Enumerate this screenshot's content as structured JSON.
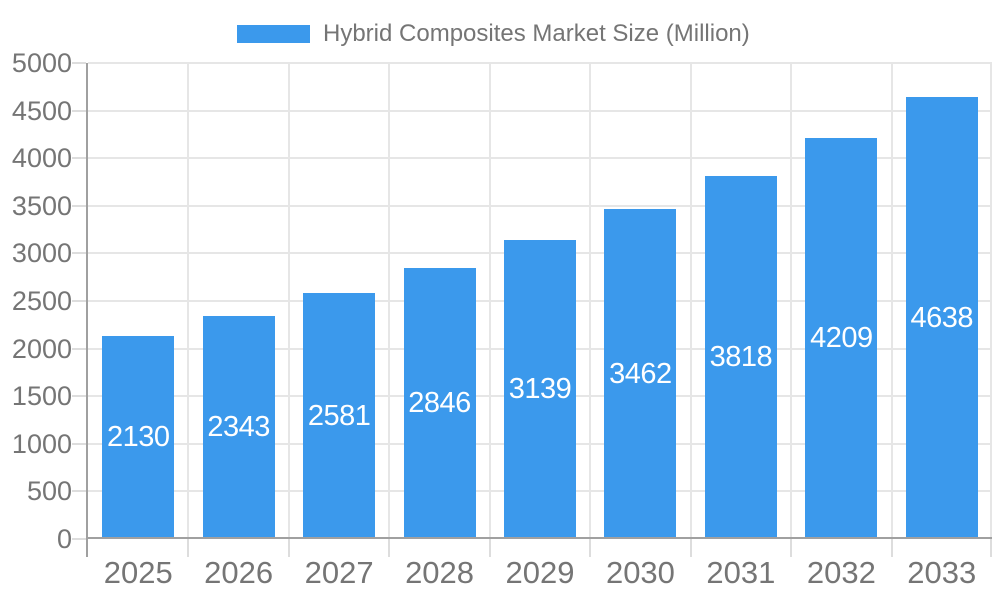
{
  "legend": {
    "label": "Hybrid Composites Market Size (Million)"
  },
  "chart_data": {
    "type": "bar",
    "title": "Hybrid Composites Market Size (Million)",
    "categories": [
      "2025",
      "2026",
      "2027",
      "2028",
      "2029",
      "2030",
      "2031",
      "2032",
      "2033"
    ],
    "series": [
      {
        "name": "Hybrid Composites Market Size (Million)",
        "values": [
          2130,
          2343,
          2581,
          2846,
          3139,
          3462,
          3818,
          4209,
          4638
        ]
      }
    ],
    "value_labels": [
      2130,
      2343,
      2581,
      2846,
      3139,
      3462,
      3818,
      4209,
      4638
    ],
    "xlabel": "",
    "ylabel": "",
    "ylim": [
      0,
      5000
    ],
    "ytick_step": 500,
    "yticks": [
      0,
      500,
      1000,
      1500,
      2000,
      2500,
      3000,
      3500,
      4000,
      4500,
      5000
    ],
    "grid": true,
    "legend_position": "top-center",
    "value_label_position": "inside-center"
  },
  "colors": {
    "bar": "#3B99EC",
    "axis_line": "#A0A0A0",
    "gridline": "#E6E6E6",
    "tick": "#DDDDDD",
    "axis_label": "#757575",
    "legend_label": "#757575",
    "value_label": "#FFFFFF",
    "background": "#FFFFFF"
  }
}
